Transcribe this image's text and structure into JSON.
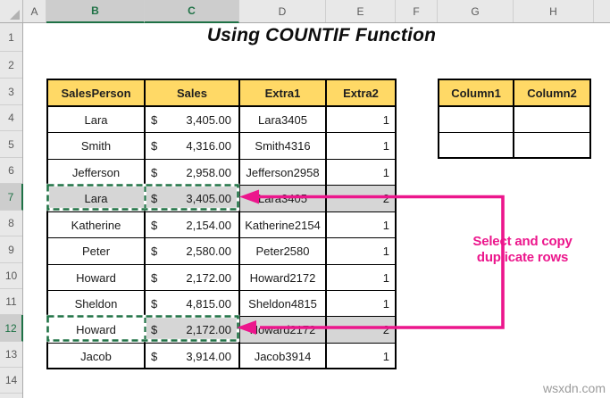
{
  "colors": {
    "pink": "#EC168C",
    "yellow": "#FFD966",
    "green": "#1E7145",
    "selection_gray": "#D6D6D6"
  },
  "title": "Using COUNTIF Function",
  "spreadsheet": {
    "column_letters": [
      "A",
      "B",
      "C",
      "D",
      "E",
      "F",
      "G",
      "H"
    ],
    "selected_columns": [
      "B",
      "C"
    ],
    "row_numbers": [
      "1",
      "2",
      "3",
      "4",
      "5",
      "6",
      "7",
      "8",
      "9",
      "10",
      "11",
      "12",
      "13",
      "14"
    ],
    "selected_rows": [
      "7",
      "12"
    ]
  },
  "main_table": {
    "headers": [
      "SalesPerson",
      "Sales",
      "Extra1",
      "Extra2"
    ],
    "currency_symbol": "$",
    "rows": [
      {
        "person": "Lara",
        "sales": "3,405.00",
        "extra1": "Lara3405",
        "extra2": "1",
        "selected": false,
        "active_cell": null
      },
      {
        "person": "Smith",
        "sales": "4,316.00",
        "extra1": "Smith4316",
        "extra2": "1",
        "selected": false,
        "active_cell": null
      },
      {
        "person": "Jefferson",
        "sales": "2,958.00",
        "extra1": "Jefferson2958",
        "extra2": "1",
        "selected": false,
        "active_cell": null
      },
      {
        "person": "Lara",
        "sales": "3,405.00",
        "extra1": "Lara3405",
        "extra2": "2",
        "selected": true,
        "active_cell": null
      },
      {
        "person": "Katherine",
        "sales": "2,154.00",
        "extra1": "Katherine2154",
        "extra2": "1",
        "selected": false,
        "active_cell": null
      },
      {
        "person": "Peter",
        "sales": "2,580.00",
        "extra1": "Peter2580",
        "extra2": "1",
        "selected": false,
        "active_cell": null
      },
      {
        "person": "Howard",
        "sales": "2,172.00",
        "extra1": "Howard2172",
        "extra2": "1",
        "selected": false,
        "active_cell": null
      },
      {
        "person": "Sheldon",
        "sales": "4,815.00",
        "extra1": "Sheldon4815",
        "extra2": "1",
        "selected": false,
        "active_cell": null
      },
      {
        "person": "Howard",
        "sales": "2,172.00",
        "extra1": "Howard2172",
        "extra2": "2",
        "selected": true,
        "active_cell": "person"
      },
      {
        "person": "Jacob",
        "sales": "3,914.00",
        "extra1": "Jacob3914",
        "extra2": "1",
        "selected": false,
        "active_cell": null
      }
    ]
  },
  "side_table": {
    "headers": [
      "Column1",
      "Column2"
    ],
    "rows": [
      [
        "",
        ""
      ],
      [
        "",
        ""
      ]
    ]
  },
  "annotation": {
    "line1": "Select and copy",
    "line2": "duplicate rows"
  },
  "watermark": "wsxdn.com"
}
